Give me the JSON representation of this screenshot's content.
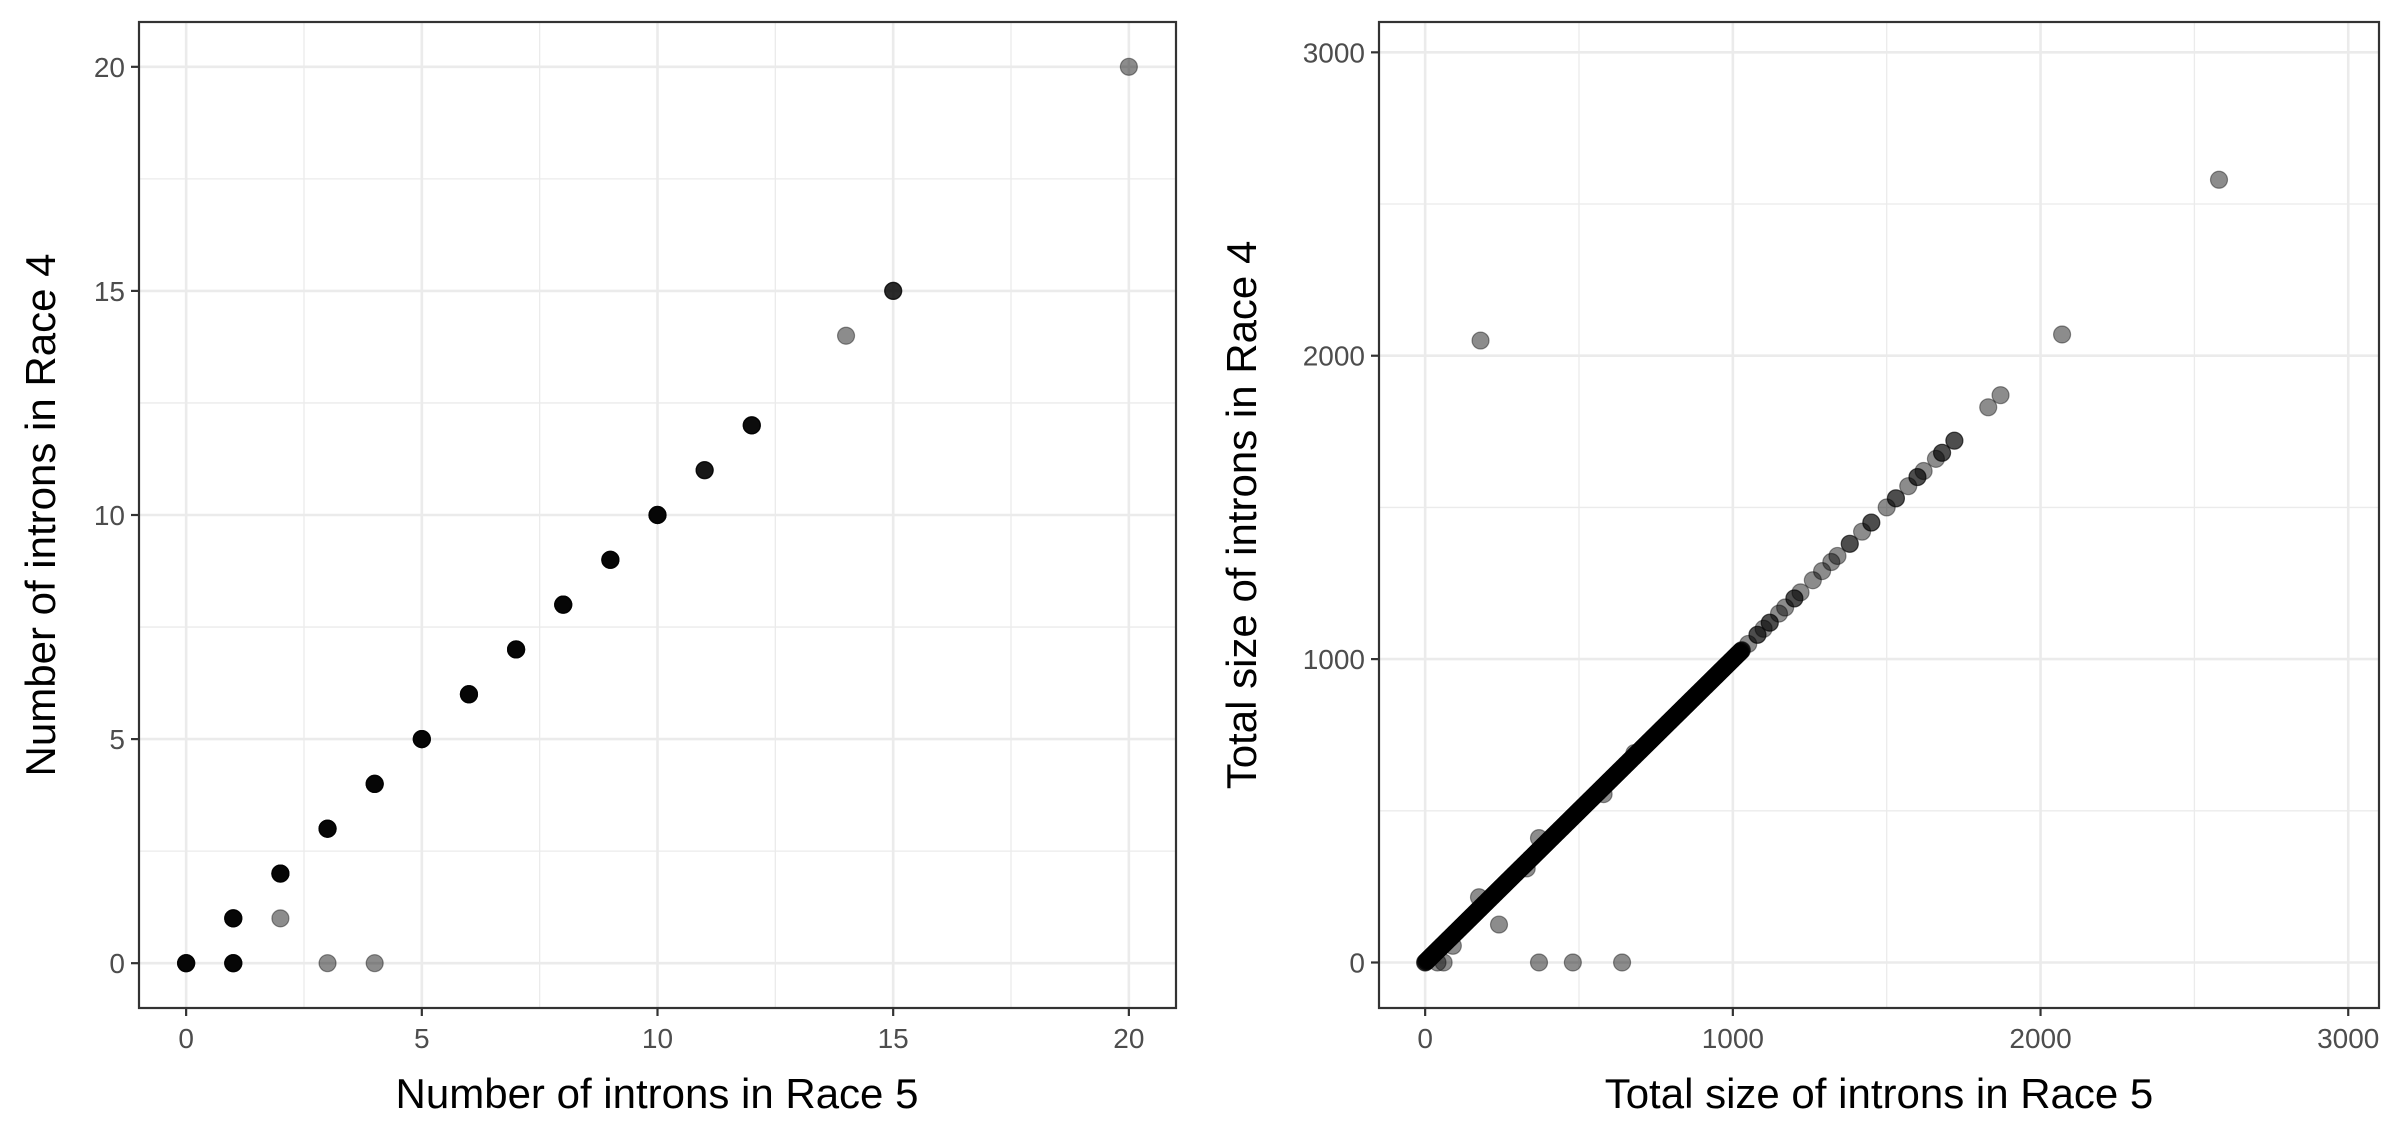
{
  "colors": {
    "point": "#000000",
    "grid": "#ebebeb",
    "border": "#333333",
    "tick_text": "#4d4d4d"
  },
  "chart_data": [
    {
      "type": "scatter",
      "xlabel": "Number of introns in Race 5",
      "ylabel": "Number of introns in Race 4",
      "xlim": [
        -1,
        21
      ],
      "ylim": [
        -1,
        21
      ],
      "xticks": [
        0,
        5,
        10,
        15,
        20
      ],
      "yticks": [
        0,
        5,
        10,
        15,
        20
      ],
      "x_tick_labels": [
        "0",
        "5",
        "10",
        "15",
        "20"
      ],
      "y_tick_labels": [
        "0",
        "5",
        "10",
        "15",
        "20"
      ],
      "grid": true,
      "point_opacity": 0.45,
      "points": [
        {
          "x": 0,
          "y": 0,
          "n": 6
        },
        {
          "x": 1,
          "y": 1,
          "n": 6
        },
        {
          "x": 1,
          "y": 0,
          "n": 6
        },
        {
          "x": 2,
          "y": 2,
          "n": 6
        },
        {
          "x": 2,
          "y": 1,
          "n": 1
        },
        {
          "x": 3,
          "y": 3,
          "n": 6
        },
        {
          "x": 3,
          "y": 0,
          "n": 1
        },
        {
          "x": 4,
          "y": 4,
          "n": 6
        },
        {
          "x": 4,
          "y": 0,
          "n": 1
        },
        {
          "x": 5,
          "y": 5,
          "n": 6
        },
        {
          "x": 6,
          "y": 6,
          "n": 6
        },
        {
          "x": 7,
          "y": 7,
          "n": 6
        },
        {
          "x": 8,
          "y": 8,
          "n": 6
        },
        {
          "x": 9,
          "y": 9,
          "n": 6
        },
        {
          "x": 10,
          "y": 10,
          "n": 6
        },
        {
          "x": 11,
          "y": 11,
          "n": 4
        },
        {
          "x": 12,
          "y": 12,
          "n": 5
        },
        {
          "x": 14,
          "y": 14,
          "n": 1
        },
        {
          "x": 15,
          "y": 15,
          "n": 3
        },
        {
          "x": 20,
          "y": 20,
          "n": 1
        }
      ]
    },
    {
      "type": "scatter",
      "xlabel": "Total size of introns in Race 5",
      "ylabel": "Total size of introns in Race 4",
      "xlim": [
        -150,
        3100
      ],
      "ylim": [
        -150,
        3100
      ],
      "xticks": [
        0,
        1000,
        2000,
        3000
      ],
      "yticks": [
        0,
        1000,
        2000,
        3000
      ],
      "x_tick_labels": [
        "0",
        "1000",
        "2000",
        "3000"
      ],
      "y_tick_labels": [
        "0",
        "1000",
        "2000",
        "3000"
      ],
      "grid": true,
      "point_opacity": 0.45,
      "diagonal_cluster": {
        "from": 0,
        "to": 1030,
        "step": 3,
        "n": 2
      },
      "points": [
        {
          "x": 1050,
          "y": 1050,
          "n": 1
        },
        {
          "x": 1080,
          "y": 1080,
          "n": 2
        },
        {
          "x": 1100,
          "y": 1100,
          "n": 1
        },
        {
          "x": 1120,
          "y": 1120,
          "n": 2
        },
        {
          "x": 1150,
          "y": 1150,
          "n": 1
        },
        {
          "x": 1170,
          "y": 1170,
          "n": 1
        },
        {
          "x": 1200,
          "y": 1200,
          "n": 2
        },
        {
          "x": 1220,
          "y": 1220,
          "n": 1
        },
        {
          "x": 1260,
          "y": 1260,
          "n": 1
        },
        {
          "x": 1290,
          "y": 1290,
          "n": 1
        },
        {
          "x": 1320,
          "y": 1320,
          "n": 1
        },
        {
          "x": 1340,
          "y": 1340,
          "n": 1
        },
        {
          "x": 1380,
          "y": 1380,
          "n": 2
        },
        {
          "x": 1420,
          "y": 1420,
          "n": 1
        },
        {
          "x": 1450,
          "y": 1450,
          "n": 2
        },
        {
          "x": 1500,
          "y": 1500,
          "n": 1
        },
        {
          "x": 1530,
          "y": 1530,
          "n": 2
        },
        {
          "x": 1570,
          "y": 1570,
          "n": 1
        },
        {
          "x": 1600,
          "y": 1600,
          "n": 2
        },
        {
          "x": 1620,
          "y": 1620,
          "n": 1
        },
        {
          "x": 1660,
          "y": 1660,
          "n": 1
        },
        {
          "x": 1680,
          "y": 1680,
          "n": 2
        },
        {
          "x": 1720,
          "y": 1720,
          "n": 2
        },
        {
          "x": 1830,
          "y": 1830,
          "n": 1
        },
        {
          "x": 1870,
          "y": 1870,
          "n": 1
        },
        {
          "x": 2070,
          "y": 2070,
          "n": 1
        },
        {
          "x": 2580,
          "y": 2580,
          "n": 1
        },
        {
          "x": 180,
          "y": 2050,
          "n": 1
        },
        {
          "x": 370,
          "y": 0,
          "n": 1
        },
        {
          "x": 480,
          "y": 0,
          "n": 1
        },
        {
          "x": 640,
          "y": 0,
          "n": 1
        },
        {
          "x": 240,
          "y": 125,
          "n": 1
        },
        {
          "x": 60,
          "y": 0,
          "n": 1
        },
        {
          "x": 40,
          "y": 0,
          "n": 1
        },
        {
          "x": 90,
          "y": 55,
          "n": 1
        },
        {
          "x": 330,
          "y": 310,
          "n": 1
        },
        {
          "x": 370,
          "y": 410,
          "n": 1
        },
        {
          "x": 580,
          "y": 555,
          "n": 1
        },
        {
          "x": 680,
          "y": 690,
          "n": 1
        },
        {
          "x": 175,
          "y": 215,
          "n": 1
        }
      ]
    }
  ]
}
